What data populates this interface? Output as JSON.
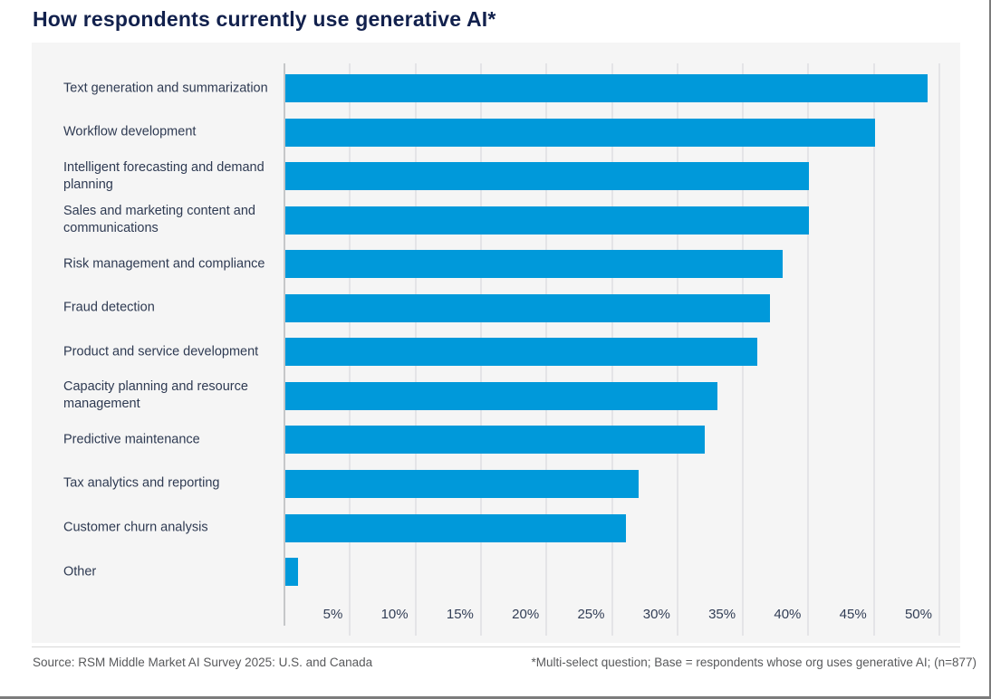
{
  "title": "How respondents currently use generative AI*",
  "footer": {
    "source": "Source: RSM Middle Market AI Survey 2025: U.S. and Canada",
    "note": "*Multi-select question; Base = respondents whose org uses generative AI; (n=877)"
  },
  "colors": {
    "bar": "#0099da",
    "title_text": "#12214d",
    "category_text": "#2e3a52",
    "tick_text": "#313d55",
    "panel_background": "#f5f5f5",
    "gridline": "#e4e4e7",
    "axis_line": "#c5c7c9",
    "footer_text": "#58595b",
    "page_border": "#7c7c7c"
  },
  "chart_data": {
    "type": "bar",
    "orientation": "horizontal",
    "title": "How respondents currently use generative AI*",
    "categories": [
      "Text generation and summarization",
      "Workflow development",
      "Intelligent forecasting and demand planning",
      "Sales and marketing content and communications",
      "Risk management and compliance",
      "Fraud detection",
      "Product and service development",
      "Capacity planning and resource management",
      "Predictive maintenance",
      "Tax analytics and reporting",
      "Customer churn analysis",
      "Other"
    ],
    "values": [
      49,
      45,
      40,
      40,
      38,
      37,
      36,
      33,
      32,
      27,
      26,
      1
    ],
    "unit": "%",
    "x_tick_labels": [
      "5%",
      "10%",
      "15%",
      "20%",
      "25%",
      "30%",
      "35%",
      "40%",
      "45%",
      "50%"
    ],
    "x_tick_values": [
      5,
      10,
      15,
      20,
      25,
      30,
      35,
      40,
      45,
      50
    ],
    "xlim": [
      0,
      50
    ],
    "grid": true,
    "legend": false,
    "data_labels": false
  }
}
